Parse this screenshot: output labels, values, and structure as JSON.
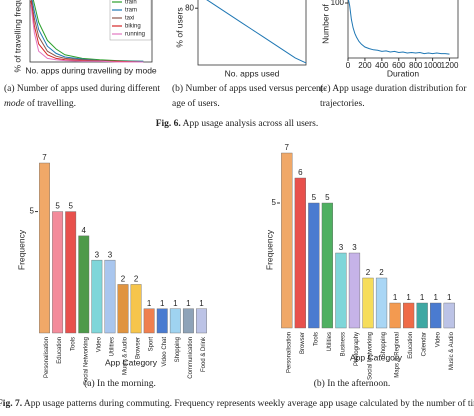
{
  "chart_data": [
    {
      "type": "line",
      "ylabel": "% of travelling frequency",
      "xlabel": "No. apps during travelling by mode",
      "xlim": [
        0,
        140
      ],
      "ylim": [
        0,
        100
      ],
      "legend": "upper right",
      "x": [
        1,
        5,
        10,
        20,
        30,
        40,
        60,
        80,
        100,
        130
      ],
      "series": [
        {
          "name": "train",
          "color": "#2ca02c",
          "values": [
            100,
            80,
            55,
            30,
            18,
            10,
            5,
            3,
            2,
            1
          ]
        },
        {
          "name": "tram",
          "color": "#1f77b4",
          "values": [
            95,
            70,
            45,
            22,
            12,
            7,
            4,
            2,
            1,
            1
          ]
        },
        {
          "name": "taxi",
          "color": "#8c564b",
          "values": [
            90,
            60,
            35,
            15,
            8,
            5,
            3,
            2,
            1,
            0
          ]
        },
        {
          "name": "biking",
          "color": "#d62728",
          "values": [
            85,
            50,
            25,
            10,
            5,
            3,
            2,
            1,
            1,
            0
          ]
        },
        {
          "name": "running",
          "color": "#e377c2",
          "values": [
            80,
            40,
            15,
            5,
            3,
            2,
            1,
            1,
            0,
            0
          ]
        }
      ]
    },
    {
      "type": "line",
      "ylabel": "% of users",
      "xlabel": "No. apps used",
      "xlim": [
        0,
        100
      ],
      "ylim": [
        0,
        100
      ],
      "yticks": [
        80
      ],
      "x": [
        0,
        10,
        20,
        30,
        40,
        50,
        60,
        70,
        80,
        90,
        100
      ],
      "series": [
        {
          "name": null,
          "color": "#1f77b4",
          "values": [
            100,
            90,
            80,
            70,
            60,
            50,
            40,
            30,
            20,
            10,
            3
          ]
        }
      ]
    },
    {
      "type": "line",
      "ylabel": "Number of",
      "xlabel": "Duration",
      "xlim": [
        0,
        1300
      ],
      "ylim": [
        0,
        120
      ],
      "xticks": [
        0,
        200,
        400,
        600,
        800,
        1000,
        1200
      ],
      "yticks": [
        100
      ],
      "x": [
        0,
        20,
        40,
        60,
        80,
        100,
        130,
        160,
        200,
        250,
        300,
        350,
        400,
        450,
        500,
        550,
        600,
        650,
        700,
        750,
        800,
        850,
        900,
        950,
        1000,
        1050,
        1100,
        1150,
        1200
      ],
      "series": [
        {
          "name": null,
          "color": "#1f77b4",
          "values": [
            110,
            95,
            70,
            55,
            45,
            38,
            30,
            25,
            20,
            17,
            15,
            14,
            12,
            13,
            11,
            12,
            10,
            11,
            9,
            10,
            9,
            10,
            8,
            9,
            8,
            9,
            8,
            8,
            7
          ]
        }
      ]
    },
    {
      "type": "bar",
      "ylabel": "Frequency",
      "xlabel": "App Category",
      "ylim": [
        0,
        7
      ],
      "yticks": [
        5
      ],
      "categories": [
        "Personalisation",
        "Education",
        "Tools",
        "Social Networking",
        "Video",
        "Utilities",
        "Music & Audio",
        "Browser",
        "Sport",
        "Video Chat",
        "Shopping",
        "Communication",
        "Food & Drink"
      ],
      "values": [
        7,
        5,
        5,
        4,
        3,
        3,
        2,
        2,
        1,
        1,
        1,
        1,
        1
      ],
      "colors": [
        "#f0a868",
        "#f38b9b",
        "#e8504c",
        "#4e9a4a",
        "#7fd6d9",
        "#a9c6ee",
        "#e09440",
        "#f6c54c",
        "#ef7f4f",
        "#4a7bd0",
        "#9fd3f0",
        "#8ea3b8",
        "#bcc3e6"
      ]
    },
    {
      "type": "bar",
      "ylabel": "Frequency",
      "xlabel": "App Category",
      "ylim": [
        0,
        7
      ],
      "yticks": [
        5
      ],
      "categories": [
        "Personalisation",
        "Browser",
        "Tools",
        "Utilities",
        "Business",
        "Photography",
        "Social Networking",
        "Shopping",
        "Maps & Regional",
        "Education",
        "Calendar",
        "Video",
        "Music & Audio"
      ],
      "values": [
        7,
        6,
        5,
        5,
        3,
        3,
        2,
        2,
        1,
        1,
        1,
        1,
        1
      ],
      "colors": [
        "#f0a868",
        "#e8504c",
        "#4a7bd0",
        "#4fb061",
        "#7fd6d9",
        "#c6b3e8",
        "#f6dd5a",
        "#a9d6f5",
        "#f39a50",
        "#ef6b48",
        "#3fa8a3",
        "#4a7bd0",
        "#bcc3e6"
      ]
    }
  ],
  "captions": {
    "a6": [
      "(a) Number of apps used during different",
      "mode",
      " of travelling."
    ],
    "b6": [
      "(b) Number of apps used versus percent-",
      "age of users."
    ],
    "c6": [
      "(c) App usage duration distribution for",
      "trajectories."
    ],
    "fig6": [
      "Fig. 6.",
      " App usage analysis across all users."
    ],
    "a7": "(a) In the morning.",
    "b7": "(b) In the afternoon.",
    "fig7": [
      "Fig. 7.",
      " App usage patterns during commuting. Frequency represents weekly average app usage calculated by the number of times an app is launch"
    ]
  }
}
